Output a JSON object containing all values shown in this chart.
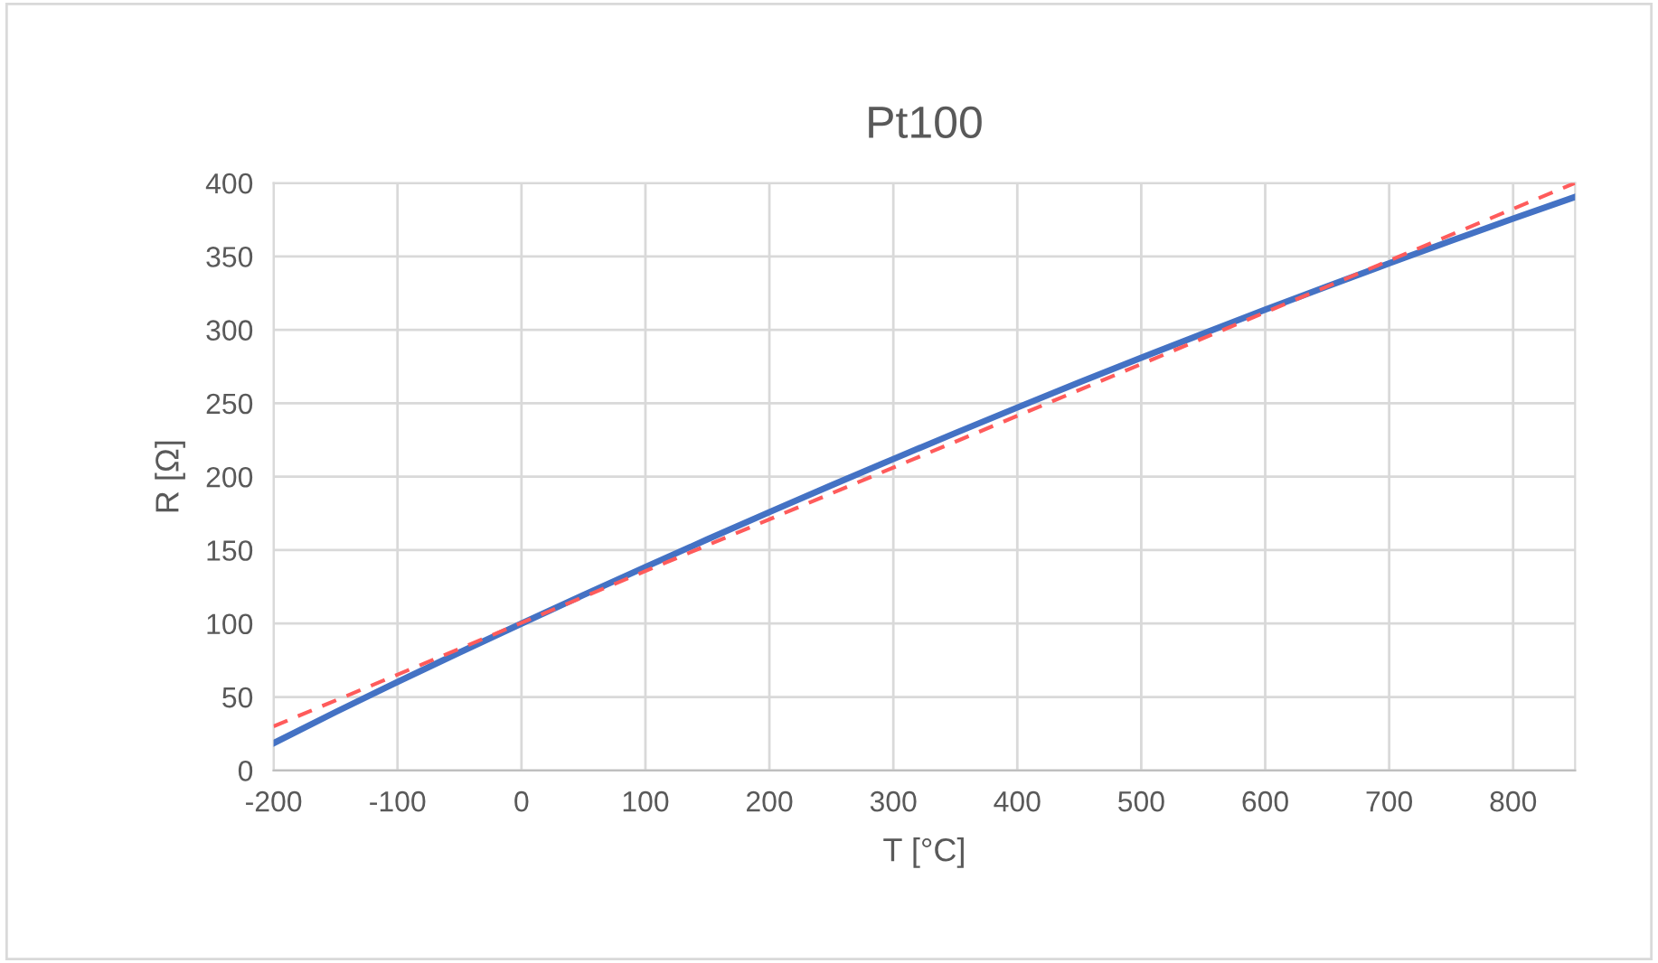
{
  "chart_data": {
    "type": "line",
    "title": "Pt100",
    "xlabel": "T [°C]",
    "ylabel": "R [Ω]",
    "series": [
      {
        "color": "#4472c4",
        "line_style": "solid",
        "x": [
          -200,
          -150,
          -100,
          -50,
          0,
          50,
          100,
          150,
          200,
          250,
          300,
          350,
          400,
          450,
          500,
          550,
          600,
          650,
          700,
          750,
          800,
          850
        ],
        "values": [
          18.52,
          39.72,
          60.26,
          80.31,
          100,
          119.4,
          138.51,
          157.33,
          175.86,
          194.1,
          212.05,
          229.72,
          247.09,
          264.18,
          280.98,
          297.49,
          313.71,
          329.64,
          345.28,
          360.64,
          375.7,
          390.48
        ]
      },
      {
        "color": "#ff5b5b",
        "line_style": "dashed",
        "x": [
          -200,
          850
        ],
        "values": [
          30,
          400
        ]
      }
    ],
    "xlim": [
      -200,
      850
    ],
    "xticks": [
      -200,
      -100,
      0,
      100,
      200,
      300,
      400,
      500,
      600,
      700,
      800
    ],
    "ylim": [
      0,
      400
    ],
    "yticks": [
      0,
      50,
      100,
      150,
      200,
      250,
      300,
      350,
      400
    ],
    "grid": true,
    "legend": false,
    "marker": "none"
  }
}
